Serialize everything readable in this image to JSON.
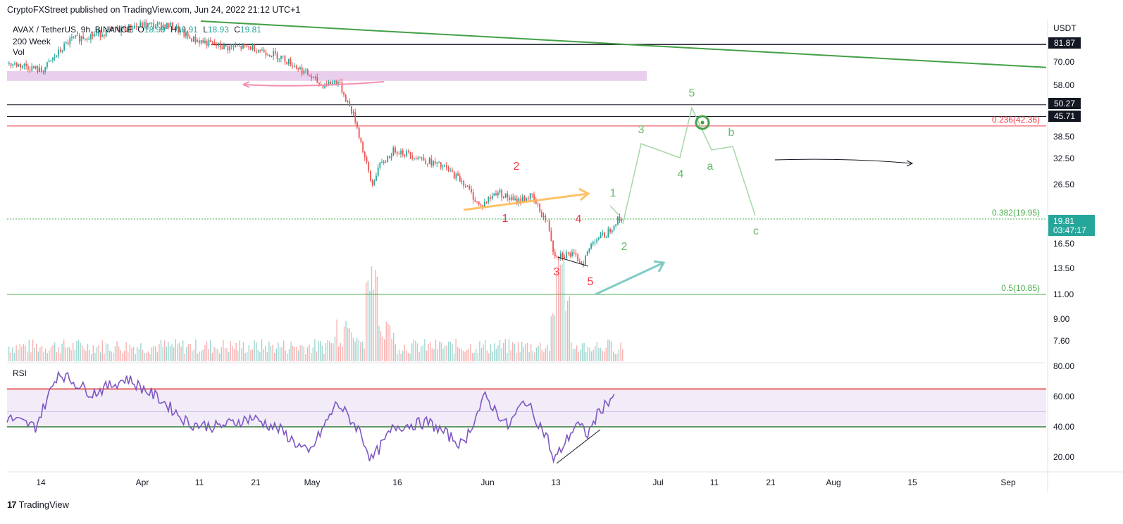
{
  "header": {
    "text": "CryptoFXStreet published on TradingView.com, Jun 24, 2022 21:12 UTC+1"
  },
  "footer": {
    "brand": "TradingView",
    "logo_glyph": "17"
  },
  "legend": {
    "symbol": "AVAX / TetherUS, 9h, BINANCE",
    "o_label": "O",
    "o": "18.99",
    "h_label": "H",
    "h": "19.91",
    "l_label": "L",
    "l": "18.93",
    "c_label": "C",
    "c": "19.81",
    "ma_label": "200 Week",
    "vol_label": "Vol"
  },
  "rsi_label": "RSI",
  "currency": "USDT",
  "colors": {
    "up": "#26a69a",
    "down": "#ef5350",
    "rsi": "#7e57c2",
    "fib": "#4caf50",
    "fib_red": "#f23645",
    "zone": "#e1bee7",
    "wave_red": "#f23645",
    "wave_green": "#66bb6a"
  },
  "chart_data": {
    "type": "candlestick",
    "log_scale": true,
    "x_ticks": [
      "14",
      "Apr",
      "11",
      "21",
      "May",
      "16",
      "Jun",
      "13",
      "Jul",
      "11",
      "21",
      "Aug",
      "15",
      "Sep"
    ],
    "price_ticks": [
      "81.87",
      "70.00",
      "58.00",
      "50.27",
      "45.71",
      "38.50",
      "32.50",
      "26.50",
      "19.81",
      "16.50",
      "13.50",
      "11.00",
      "9.00",
      "7.60"
    ],
    "rsi_ticks": [
      "80.00",
      "60.00",
      "40.00",
      "20.00"
    ],
    "last_price": "19.81",
    "countdown": "03:47:17",
    "fib_levels": [
      {
        "label": "0.236(42.36)",
        "value": 42.36
      },
      {
        "label": "0.382(19.95)",
        "value": 19.95
      },
      {
        "label": "0.5(10.85)",
        "value": 10.85
      }
    ],
    "horizontal_levels": [
      "81.87",
      "50.27",
      "45.71"
    ],
    "supply_zone": [
      61,
      66
    ],
    "rsi_bands": {
      "upper": 65,
      "middle": 50,
      "lower": 40
    },
    "wave_labels_red": [
      "2",
      "1",
      "4",
      "3",
      "5"
    ],
    "wave_labels_green": [
      "5",
      "3",
      "4",
      "1",
      "2",
      "b",
      "a",
      "c"
    ],
    "price_path": [
      [
        "Mar 09",
        70
      ],
      [
        "Mar 12",
        69
      ],
      [
        "Mar 15",
        66
      ],
      [
        "Mar 20",
        85
      ],
      [
        "Mar 28",
        92
      ],
      [
        "Apr 02",
        96
      ],
      [
        "Apr 07",
        95
      ],
      [
        "Apr 10",
        86
      ],
      [
        "Apr 16",
        80
      ],
      [
        "Apr 21",
        80
      ],
      [
        "Apr 26",
        74
      ],
      [
        "Apr 30",
        66
      ],
      [
        "May 03",
        59
      ],
      [
        "May 06",
        61
      ],
      [
        "May 09",
        45
      ],
      [
        "May 12",
        26
      ],
      [
        "May 13",
        30
      ],
      [
        "May 16",
        35
      ],
      [
        "May 20",
        33
      ],
      [
        "May 25",
        30
      ],
      [
        "May 28",
        27
      ],
      [
        "May 31",
        22
      ],
      [
        "Jun 03",
        25
      ],
      [
        "Jun 06",
        23
      ],
      [
        "Jun 09",
        24
      ],
      [
        "Jun 12",
        19
      ],
      [
        "Jun 13",
        15
      ],
      [
        "Jun 16",
        15
      ],
      [
        "Jun 18",
        14
      ],
      [
        "Jun 20",
        17
      ],
      [
        "Jun 22",
        17.5
      ],
      [
        "Jun 24",
        19.81
      ]
    ],
    "rsi_path": [
      [
        "Mar 09",
        46
      ],
      [
        "Mar 14",
        40
      ],
      [
        "Mar 18",
        76
      ],
      [
        "Mar 24",
        62
      ],
      [
        "Mar 30",
        72
      ],
      [
        "Apr 05",
        58
      ],
      [
        "Apr 10",
        42
      ],
      [
        "Apr 15",
        40
      ],
      [
        "Apr 21",
        46
      ],
      [
        "Apr 26",
        38
      ],
      [
        "May 01",
        22
      ],
      [
        "May 06",
        56
      ],
      [
        "May 10",
        37
      ],
      [
        "May 12",
        18
      ],
      [
        "May 16",
        40
      ],
      [
        "May 22",
        43
      ],
      [
        "May 28",
        28
      ],
      [
        "Jun 01",
        60
      ],
      [
        "Jun 05",
        40
      ],
      [
        "Jun 08",
        58
      ],
      [
        "Jun 12",
        32
      ],
      [
        "Jun 13",
        17
      ],
      [
        "Jun 17",
        42
      ],
      [
        "Jun 19",
        35
      ],
      [
        "Jun 21",
        50
      ],
      [
        "Jun 24",
        63
      ]
    ]
  }
}
